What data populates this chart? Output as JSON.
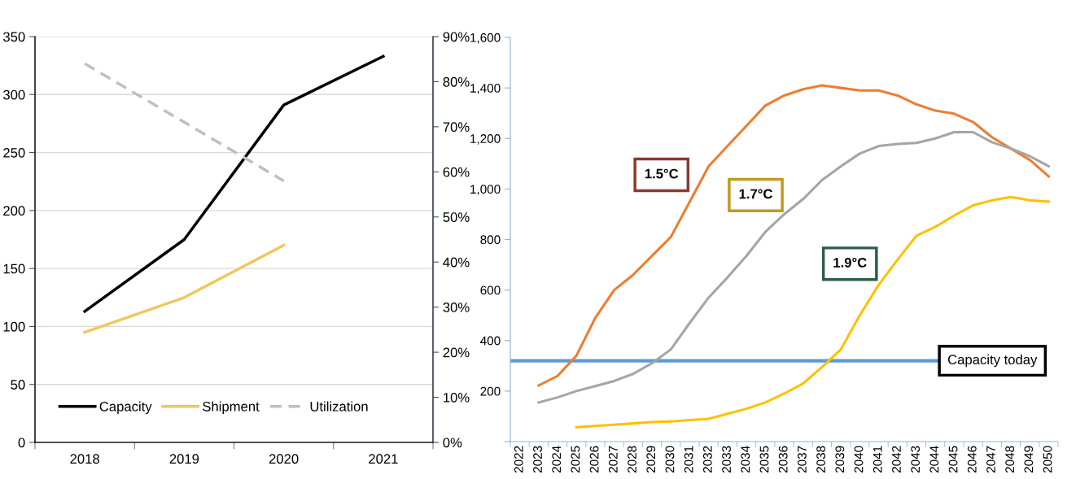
{
  "chart_data": [
    {
      "type": "line",
      "categories": [
        "2018",
        "2019",
        "2020",
        "2021"
      ],
      "series": [
        {
          "name": "Capacity",
          "color": "#000000",
          "values": [
            113,
            175,
            291,
            333
          ]
        },
        {
          "name": "Shipment",
          "color": "#f0c75e",
          "values": [
            95,
            125,
            170,
            null
          ]
        },
        {
          "name": "Utilization",
          "color": "#bfbfbf",
          "values": [
            84,
            71,
            58,
            null
          ],
          "axis": "y2",
          "line_style": "dashed"
        }
      ],
      "ylim": [
        0,
        350
      ],
      "yticks": [
        0,
        50,
        100,
        150,
        200,
        250,
        300,
        350
      ],
      "y2lim": [
        0,
        90
      ],
      "y2ticks": [
        {
          "value": 0,
          "label": "0%"
        },
        {
          "value": 10,
          "label": "10%"
        },
        {
          "value": 20,
          "label": "20%"
        },
        {
          "value": 30,
          "label": "30%"
        },
        {
          "value": 40,
          "label": "40%"
        },
        {
          "value": 50,
          "label": "50%"
        },
        {
          "value": 60,
          "label": "60%"
        },
        {
          "value": 70,
          "label": "70%"
        },
        {
          "value": 80,
          "label": "80%"
        },
        {
          "value": 90,
          "label": "90%"
        }
      ],
      "grid": "y",
      "legend": "bottom",
      "marker": "none",
      "line_style": "solid"
    },
    {
      "type": "line",
      "categories": [
        "2022",
        "2023",
        "2024",
        "2025",
        "2026",
        "2027",
        "2028",
        "2029",
        "2030",
        "2031",
        "2032",
        "2033",
        "2034",
        "2035",
        "2036",
        "2037",
        "2038",
        "2039",
        "2040",
        "2041",
        "2042",
        "2043",
        "2044",
        "2045",
        "2046",
        "2047",
        "2048",
        "2049",
        "2050"
      ],
      "series": [
        {
          "name": "1.5°C",
          "color": "#ed7d31",
          "values": [
            null,
            222,
            260,
            340,
            490,
            600,
            660,
            735,
            810,
            950,
            1090,
            1170,
            1250,
            1330,
            1370,
            1395,
            1410,
            1400,
            1390,
            1390,
            1370,
            1335,
            1310,
            1298,
            1265,
            1205,
            1160,
            1115,
            1050
          ]
        },
        {
          "name": "1.7°C",
          "color": "#a5a5a5",
          "values": [
            null,
            155,
            175,
            200,
            220,
            240,
            268,
            310,
            365,
            470,
            570,
            650,
            735,
            830,
            900,
            960,
            1035,
            1090,
            1140,
            1170,
            1178,
            1182,
            1200,
            1225,
            1225,
            1185,
            1160,
            1130,
            1090
          ]
        },
        {
          "name": "1.9°C",
          "color": "#ffc000",
          "values": [
            null,
            null,
            null,
            57,
            62,
            67,
            72,
            77,
            80,
            85,
            90,
            110,
            130,
            155,
            190,
            230,
            295,
            365,
            500,
            620,
            720,
            815,
            850,
            895,
            935,
            955,
            968,
            955,
            950
          ]
        }
      ],
      "ylim": [
        0,
        1600
      ],
      "yticks": [
        {
          "value": 0,
          "label": null
        },
        {
          "value": 200,
          "label": "200"
        },
        {
          "value": 400,
          "label": "400"
        },
        {
          "value": 600,
          "label": "600"
        },
        {
          "value": 800,
          "label": "800"
        },
        {
          "value": 1000,
          "label": "1,000"
        },
        {
          "value": 1200,
          "label": "1,200"
        },
        {
          "value": 1400,
          "label": "1,400"
        },
        {
          "value": 1600,
          "label": "1,600"
        }
      ],
      "ref_lines": [
        {
          "axis": "y",
          "value": 320,
          "label": "Capacity today",
          "color": "#5b9bd5"
        }
      ],
      "grid": false,
      "legend": false,
      "marker": "none",
      "line_style": "solid"
    }
  ]
}
